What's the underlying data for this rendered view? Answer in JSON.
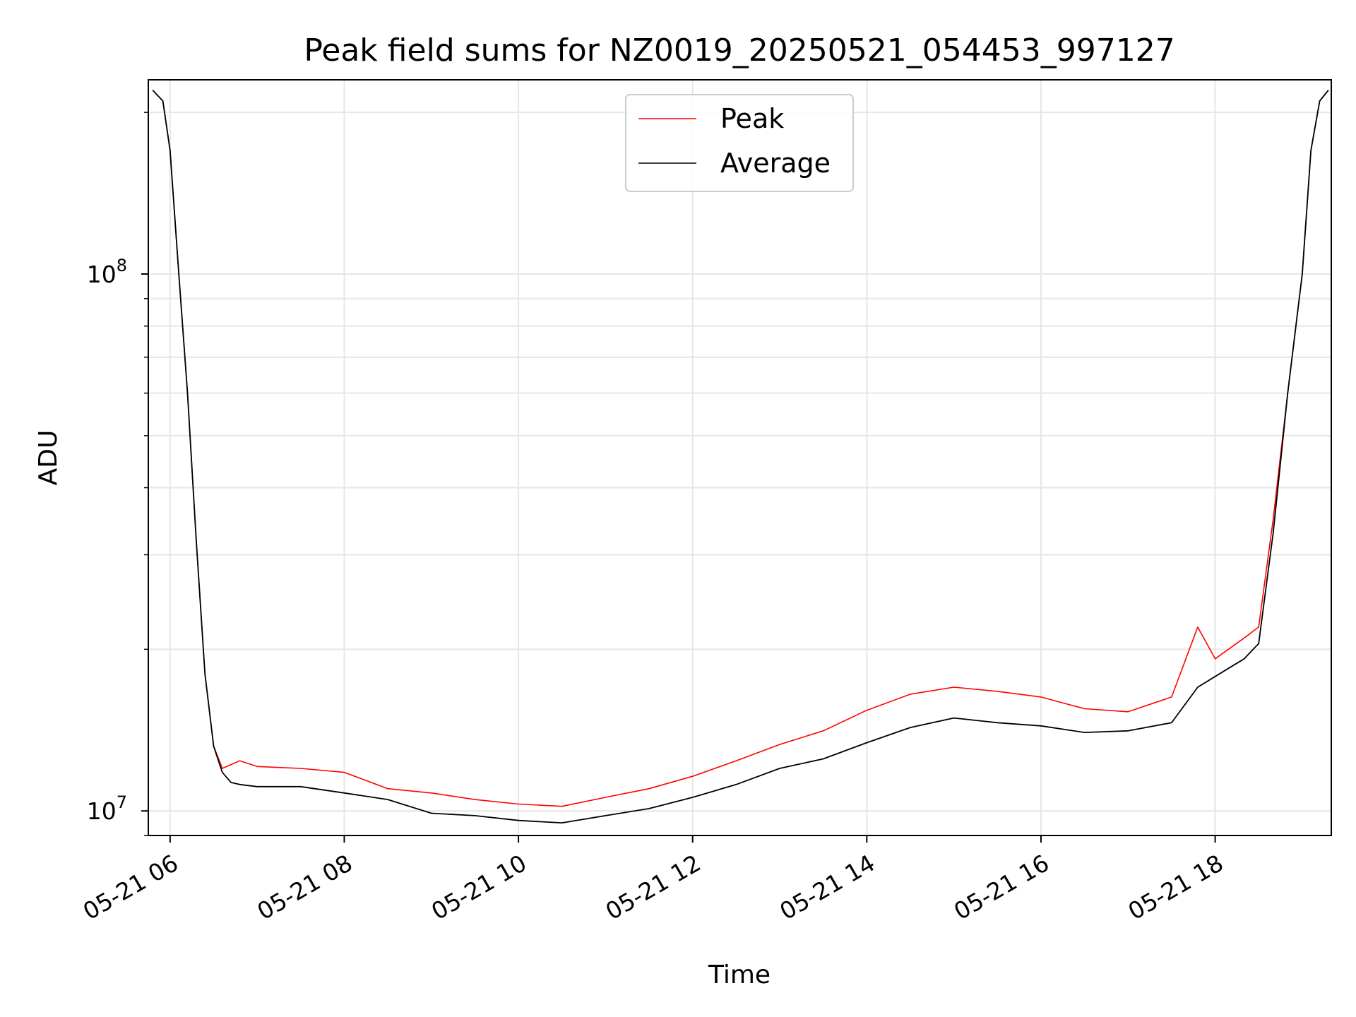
{
  "chart_data": {
    "type": "line",
    "title": "Peak field sums for NZ0019_20250521_054453_997127",
    "xlabel": "Time",
    "ylabel": "ADU",
    "y_scale": "log",
    "xlim": [
      "2025-05-21 05:45",
      "2025-05-21 19:20"
    ],
    "ylim": [
      9000000,
      230000000
    ],
    "x_ticks": [
      "05-21 06",
      "05-21 08",
      "05-21 10",
      "05-21 12",
      "05-21 14",
      "05-21 16",
      "05-21 18"
    ],
    "y_ticks": [
      {
        "mantissa": "10",
        "exponent": "7",
        "value": 10000000
      },
      {
        "mantissa": "10",
        "exponent": "8",
        "value": 100000000
      }
    ],
    "grid": true,
    "legend_position": "upper center",
    "series": [
      {
        "name": "Peak",
        "color": "#ff0000",
        "x": [
          "2025-05-21 05:48",
          "2025-05-21 05:55",
          "2025-05-21 06:00",
          "2025-05-21 06:06",
          "2025-05-21 06:12",
          "2025-05-21 06:18",
          "2025-05-21 06:24",
          "2025-05-21 06:30",
          "2025-05-21 06:36",
          "2025-05-21 06:42",
          "2025-05-21 06:48",
          "2025-05-21 07:00",
          "2025-05-21 07:30",
          "2025-05-21 08:00",
          "2025-05-21 08:30",
          "2025-05-21 09:00",
          "2025-05-21 09:30",
          "2025-05-21 10:00",
          "2025-05-21 10:30",
          "2025-05-21 11:00",
          "2025-05-21 11:30",
          "2025-05-21 12:00",
          "2025-05-21 12:30",
          "2025-05-21 13:00",
          "2025-05-21 13:30",
          "2025-05-21 14:00",
          "2025-05-21 14:30",
          "2025-05-21 15:00",
          "2025-05-21 15:30",
          "2025-05-21 16:00",
          "2025-05-21 16:30",
          "2025-05-21 17:00",
          "2025-05-21 17:30",
          "2025-05-21 17:48",
          "2025-05-21 18:00",
          "2025-05-21 18:20",
          "2025-05-21 18:30",
          "2025-05-21 18:40",
          "2025-05-21 18:50",
          "2025-05-21 19:00",
          "2025-05-21 19:06",
          "2025-05-21 19:12",
          "2025-05-21 19:18"
        ],
        "y": [
          220000000,
          210000000,
          170000000,
          100000000,
          60000000,
          32000000,
          18000000,
          13200000,
          12000000,
          12200000,
          12400000,
          12100000,
          12000000,
          11800000,
          11000000,
          10800000,
          10500000,
          10300000,
          10200000,
          10600000,
          11000000,
          11600000,
          12400000,
          13300000,
          14100000,
          15400000,
          16500000,
          17000000,
          16700000,
          16300000,
          15500000,
          15300000,
          16300000,
          22000000,
          19200000,
          21000000,
          22000000,
          35000000,
          60000000,
          100000000,
          170000000,
          210000000,
          220000000
        ]
      },
      {
        "name": "Average",
        "color": "#000000",
        "x": [
          "2025-05-21 05:48",
          "2025-05-21 05:55",
          "2025-05-21 06:00",
          "2025-05-21 06:06",
          "2025-05-21 06:12",
          "2025-05-21 06:18",
          "2025-05-21 06:24",
          "2025-05-21 06:30",
          "2025-05-21 06:36",
          "2025-05-21 06:42",
          "2025-05-21 06:48",
          "2025-05-21 07:00",
          "2025-05-21 07:30",
          "2025-05-21 08:00",
          "2025-05-21 08:30",
          "2025-05-21 09:00",
          "2025-05-21 09:30",
          "2025-05-21 10:00",
          "2025-05-21 10:30",
          "2025-05-21 11:00",
          "2025-05-21 11:30",
          "2025-05-21 12:00",
          "2025-05-21 12:30",
          "2025-05-21 13:00",
          "2025-05-21 13:30",
          "2025-05-21 14:00",
          "2025-05-21 14:30",
          "2025-05-21 15:00",
          "2025-05-21 15:30",
          "2025-05-21 16:00",
          "2025-05-21 16:30",
          "2025-05-21 17:00",
          "2025-05-21 17:30",
          "2025-05-21 17:48",
          "2025-05-21 18:00",
          "2025-05-21 18:20",
          "2025-05-21 18:30",
          "2025-05-21 18:40",
          "2025-05-21 18:50",
          "2025-05-21 19:00",
          "2025-05-21 19:06",
          "2025-05-21 19:12",
          "2025-05-21 19:18"
        ],
        "y": [
          220000000,
          210000000,
          170000000,
          100000000,
          60000000,
          32000000,
          18000000,
          13200000,
          11800000,
          11300000,
          11200000,
          11100000,
          11100000,
          10800000,
          10500000,
          9900000,
          9800000,
          9600000,
          9500000,
          9800000,
          10100000,
          10600000,
          11200000,
          12000000,
          12500000,
          13400000,
          14300000,
          14900000,
          14600000,
          14400000,
          14000000,
          14100000,
          14600000,
          17000000,
          17800000,
          19200000,
          20500000,
          33000000,
          60000000,
          100000000,
          170000000,
          210000000,
          220000000
        ]
      }
    ]
  }
}
